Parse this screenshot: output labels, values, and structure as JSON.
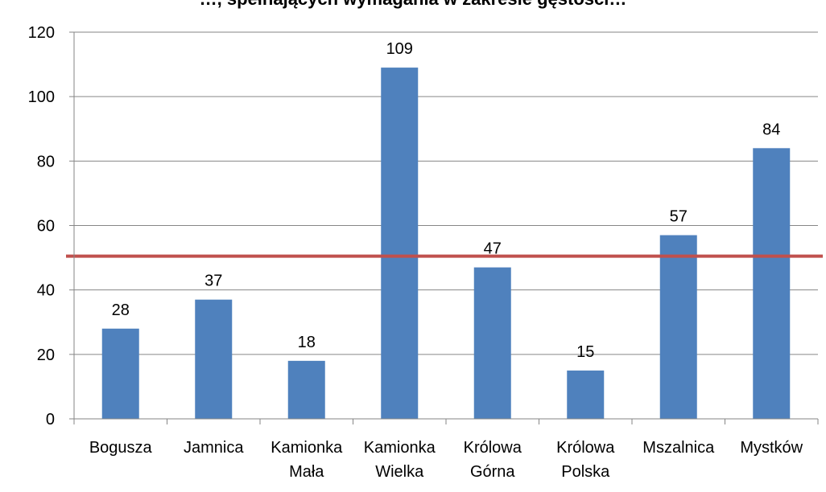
{
  "chart_data": {
    "type": "bar",
    "title_partial": "…, spełnających wymagania w zakresie gęstości…",
    "categories": [
      [
        "Bogusza"
      ],
      [
        "Jamnica"
      ],
      [
        "Kamionka",
        "Mała"
      ],
      [
        "Kamionka",
        "Wielka"
      ],
      [
        "Królowa",
        "Górna"
      ],
      [
        "Królowa",
        "Polska"
      ],
      [
        "Mszalnica"
      ],
      [
        "Mystków"
      ]
    ],
    "values": [
      28,
      37,
      18,
      109,
      47,
      15,
      57,
      84
    ],
    "data_labels": [
      "28",
      "37",
      "18",
      "109",
      "47",
      "15",
      "57",
      "84"
    ],
    "y_ticks": [
      "0",
      "20",
      "40",
      "60",
      "80",
      "100",
      "120"
    ],
    "ylim": [
      0,
      120
    ],
    "reference_line": 50.5,
    "grid": true,
    "legend": "none",
    "colors": {
      "bar": "#4f81bd",
      "reference_line": "#c0504d",
      "grid": "#868686"
    }
  }
}
